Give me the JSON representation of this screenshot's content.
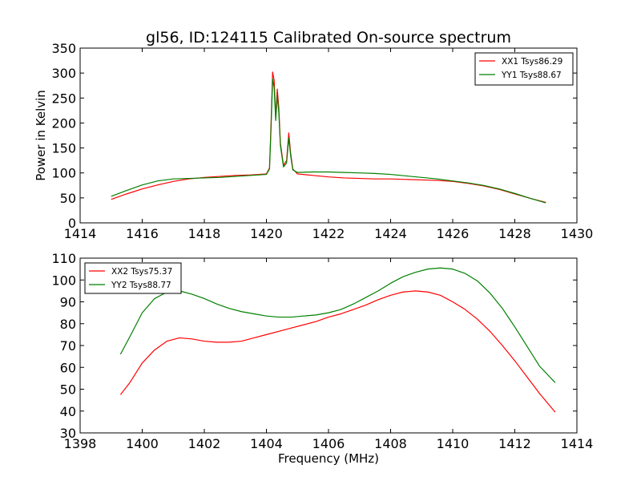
{
  "figure": {
    "title": "gl56, ID:124115 Calibrated On-source spectrum"
  },
  "chart_data": [
    {
      "type": "line",
      "title": "gl56, ID:124115 Calibrated On-source spectrum",
      "xlabel": "",
      "ylabel": "Power in Kelvin",
      "xlim": [
        1414,
        1430
      ],
      "ylim": [
        0,
        350
      ],
      "xticks": [
        1414,
        1416,
        1418,
        1420,
        1422,
        1424,
        1426,
        1428,
        1430
      ],
      "yticks": [
        0,
        50,
        100,
        150,
        200,
        250,
        300,
        350
      ],
      "grid": false,
      "legend_position": "top-right",
      "series": [
        {
          "name": "XX1 Tsys86.29",
          "color": "#ff0000",
          "x": [
            1415,
            1415.5,
            1416,
            1416.5,
            1417,
            1417.5,
            1418,
            1418.5,
            1419,
            1419.5,
            1420,
            1420.1,
            1420.15,
            1420.2,
            1420.25,
            1420.3,
            1420.35,
            1420.4,
            1420.45,
            1420.55,
            1420.65,
            1420.72,
            1420.78,
            1420.85,
            1421,
            1421.5,
            1422,
            1422.5,
            1423,
            1423.5,
            1424,
            1424.5,
            1425,
            1425.5,
            1426,
            1426.5,
            1427,
            1427.5,
            1428,
            1428.5,
            1429
          ],
          "y": [
            47,
            58,
            68,
            76,
            83,
            88,
            91,
            93,
            95,
            96,
            98,
            110,
            200,
            302,
            285,
            212,
            268,
            230,
            160,
            115,
            125,
            180,
            140,
            108,
            98,
            95,
            92,
            90,
            89,
            88,
            88,
            87,
            86,
            85,
            83,
            79,
            74,
            67,
            58,
            49,
            41
          ]
        },
        {
          "name": "YY1 Tsys88.67",
          "color": "#008000",
          "x": [
            1415,
            1415.5,
            1416,
            1416.5,
            1417,
            1417.5,
            1418,
            1418.5,
            1419,
            1419.5,
            1420,
            1420.1,
            1420.15,
            1420.2,
            1420.25,
            1420.3,
            1420.35,
            1420.4,
            1420.45,
            1420.55,
            1420.65,
            1420.72,
            1420.78,
            1420.85,
            1421,
            1421.5,
            1422,
            1422.5,
            1423,
            1423.5,
            1424,
            1424.5,
            1425,
            1425.5,
            1426,
            1426.5,
            1427,
            1427.5,
            1428,
            1428.5,
            1429
          ],
          "y": [
            53,
            65,
            76,
            84,
            88,
            89,
            90,
            91,
            93,
            95,
            97,
            108,
            190,
            288,
            270,
            205,
            255,
            220,
            155,
            112,
            120,
            170,
            135,
            106,
            101,
            102,
            102,
            101,
            100,
            99,
            97,
            94,
            91,
            88,
            84,
            80,
            75,
            68,
            59,
            49,
            40
          ]
        }
      ]
    },
    {
      "type": "line",
      "title": "",
      "xlabel": "Frequency (MHz)",
      "ylabel": "",
      "xlim": [
        1398,
        1414
      ],
      "ylim": [
        30,
        110
      ],
      "xticks": [
        1398,
        1400,
        1402,
        1404,
        1406,
        1408,
        1410,
        1412,
        1414
      ],
      "yticks": [
        30,
        40,
        50,
        60,
        70,
        80,
        90,
        100,
        110
      ],
      "grid": false,
      "legend_position": "top-left",
      "series": [
        {
          "name": "XX2 Tsys75.37",
          "color": "#ff0000",
          "x": [
            1399.3,
            1399.6,
            1400,
            1400.4,
            1400.8,
            1401.2,
            1401.6,
            1402,
            1402.4,
            1402.8,
            1403.2,
            1403.6,
            1404,
            1404.4,
            1404.8,
            1405.2,
            1405.6,
            1406,
            1406.4,
            1406.8,
            1407.2,
            1407.6,
            1408,
            1408.4,
            1408.8,
            1409.2,
            1409.6,
            1410,
            1410.4,
            1410.8,
            1411.2,
            1411.6,
            1412,
            1412.4,
            1412.8,
            1413.3
          ],
          "y": [
            47.5,
            53,
            62,
            68,
            72,
            73.5,
            73,
            72,
            71.5,
            71.5,
            72,
            73.5,
            75,
            76.5,
            78,
            79.5,
            81,
            83,
            84.5,
            86.5,
            88.5,
            91,
            93,
            94.5,
            95,
            94.5,
            93,
            90,
            86.5,
            82,
            76.5,
            70,
            63,
            55.5,
            48,
            39.5
          ]
        },
        {
          "name": "YY2 Tsys88.77",
          "color": "#008000",
          "x": [
            1399.3,
            1399.6,
            1400,
            1400.4,
            1400.8,
            1401.2,
            1401.6,
            1402,
            1402.4,
            1402.8,
            1403.2,
            1403.6,
            1404,
            1404.4,
            1404.8,
            1405.2,
            1405.6,
            1406,
            1406.4,
            1406.8,
            1407.2,
            1407.6,
            1408,
            1408.4,
            1408.8,
            1409.2,
            1409.6,
            1410,
            1410.4,
            1410.8,
            1411.2,
            1411.6,
            1412,
            1412.4,
            1412.8,
            1413.3
          ],
          "y": [
            66,
            74,
            85,
            91.5,
            94.5,
            95,
            93.5,
            91.5,
            89,
            87,
            85.5,
            84.5,
            83.5,
            83,
            83,
            83.5,
            84,
            85,
            86.5,
            89,
            92,
            95,
            98.5,
            101.5,
            103.5,
            105,
            105.5,
            105,
            103,
            99.5,
            94,
            87,
            78.5,
            69.5,
            60.5,
            53
          ]
        }
      ]
    }
  ]
}
